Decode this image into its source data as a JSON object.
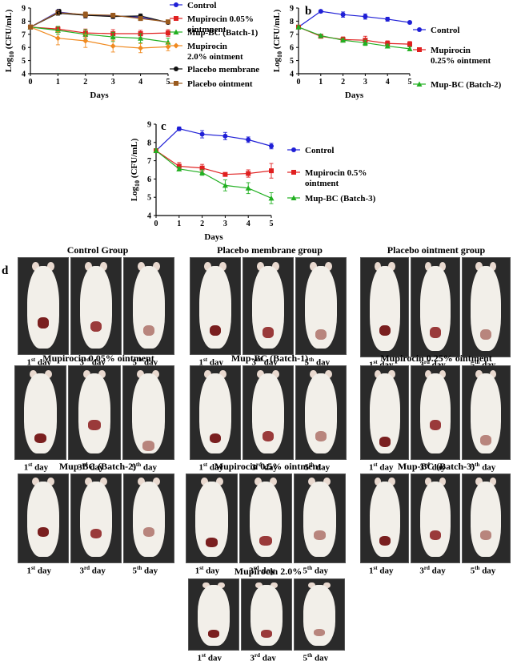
{
  "chart_data": [
    {
      "id": "a",
      "type": "line",
      "title": "",
      "xlabel": "Days",
      "ylabel": "Log10 (CFU/mL)",
      "ylabel_main": "Log",
      "ylabel_sub": "10",
      "ylabel_rest": " (CFU/mL)",
      "xlim": [
        0,
        5
      ],
      "ylim": [
        4,
        9
      ],
      "xticks": [
        "0",
        "1",
        "2",
        "3",
        "4",
        "5"
      ],
      "yticks": [
        "4",
        "5",
        "6",
        "7",
        "8",
        "9"
      ],
      "series": [
        {
          "name": "Control",
          "color": "#1f1fd6",
          "marker": "circle",
          "x": [
            0,
            1,
            2,
            3,
            4,
            5
          ],
          "y": [
            7.55,
            8.7,
            8.45,
            8.4,
            8.3,
            7.9
          ],
          "err": [
            0.1,
            0.15,
            0.2,
            0.2,
            0.15,
            0.1
          ]
        },
        {
          "name": "Mupirocin 0.05% ointmnent",
          "color": "#e02020",
          "marker": "square",
          "x": [
            0,
            1,
            2,
            3,
            4,
            5
          ],
          "y": [
            7.55,
            7.4,
            7.1,
            7.05,
            7.05,
            7.1
          ],
          "err": [
            0.1,
            0.2,
            0.3,
            0.3,
            0.25,
            0.25
          ]
        },
        {
          "name": "Mup-BC (Batch-1)",
          "color": "#22b022",
          "marker": "triangle",
          "x": [
            0,
            1,
            2,
            3,
            4,
            5
          ],
          "y": [
            7.55,
            7.3,
            7.0,
            6.8,
            6.7,
            6.4
          ],
          "err": [
            0.1,
            0.3,
            0.35,
            0.35,
            0.35,
            0.3
          ]
        },
        {
          "name": "Mupirocin 2.0% ointment",
          "color": "#f08a20",
          "marker": "diamond",
          "x": [
            0,
            1,
            2,
            3,
            4,
            5
          ],
          "y": [
            7.55,
            6.7,
            6.5,
            6.1,
            5.95,
            6.05
          ],
          "err": [
            0.1,
            0.5,
            0.5,
            0.45,
            0.35,
            0.3
          ]
        },
        {
          "name": "Placebo membrane",
          "color": "#111111",
          "marker": "circle",
          "x": [
            0,
            1,
            2,
            3,
            4,
            5
          ],
          "y": [
            7.55,
            8.6,
            8.45,
            8.35,
            8.4,
            7.9
          ],
          "err": [
            0.1,
            0.15,
            0.2,
            0.15,
            0.15,
            0.1
          ]
        },
        {
          "name": "Placebo ointment",
          "color": "#9a5a1e",
          "marker": "square",
          "x": [
            0,
            1,
            2,
            3,
            4,
            5
          ],
          "y": [
            7.55,
            8.65,
            8.5,
            8.45,
            8.2,
            7.95
          ],
          "err": [
            0.1,
            0.15,
            0.2,
            0.15,
            0.15,
            0.1
          ]
        }
      ],
      "legend_items": [
        "Control",
        "Mupirocin 0.05% ointmnent",
        "Mup-BC (Batch-1)",
        "Mupirocin 2.0% ointment",
        "Placebo membrane",
        "Placebo ointment"
      ]
    },
    {
      "id": "b",
      "type": "line",
      "title": "",
      "xlabel": "Days",
      "ylabel": "Log10 (CFU/mL)",
      "ylabel_main": "Log",
      "ylabel_sub": "10",
      "ylabel_rest": " (CFU/mL)",
      "xlim": [
        0,
        5
      ],
      "ylim": [
        4,
        9
      ],
      "xticks": [
        "0",
        "1",
        "2",
        "3",
        "4",
        "5"
      ],
      "yticks": [
        "4",
        "5",
        "6",
        "7",
        "8",
        "9"
      ],
      "series": [
        {
          "name": "Control",
          "color": "#1f1fd6",
          "marker": "circle",
          "x": [
            0,
            1,
            2,
            3,
            4,
            5
          ],
          "y": [
            7.55,
            8.75,
            8.5,
            8.35,
            8.15,
            7.9
          ],
          "err": [
            0.1,
            0.1,
            0.2,
            0.2,
            0.15,
            0.1
          ]
        },
        {
          "name": "Mupirocin 0.25% ointment",
          "color": "#e02020",
          "marker": "square",
          "x": [
            0,
            1,
            2,
            3,
            4,
            5
          ],
          "y": [
            7.55,
            6.85,
            6.6,
            6.55,
            6.3,
            6.25
          ],
          "err": [
            0.1,
            0.1,
            0.2,
            0.3,
            0.2,
            0.2
          ]
        },
        {
          "name": "Mup-BC (Batch-2)",
          "color": "#22b022",
          "marker": "triangle",
          "x": [
            0,
            1,
            2,
            3,
            4,
            5
          ],
          "y": [
            7.55,
            6.9,
            6.55,
            6.35,
            6.1,
            5.9
          ],
          "err": [
            0.1,
            0.1,
            0.15,
            0.2,
            0.15,
            0.15
          ]
        }
      ],
      "legend_items": [
        "Control",
        "Mupirocin 0.25% ointment",
        "Mup-BC (Batch-2)"
      ]
    },
    {
      "id": "c",
      "type": "line",
      "title": "",
      "xlabel": "Days",
      "ylabel": "Log10 (CFU/mL)",
      "ylabel_main": "Log",
      "ylabel_sub": "10",
      "ylabel_rest": " (CFU/mL)",
      "xlim": [
        0,
        5
      ],
      "ylim": [
        4,
        9
      ],
      "xticks": [
        "0",
        "1",
        "2",
        "3",
        "4",
        "5"
      ],
      "yticks": [
        "4",
        "5",
        "6",
        "7",
        "8",
        "9"
      ],
      "series": [
        {
          "name": "Control",
          "color": "#1f1fd6",
          "marker": "circle",
          "x": [
            0,
            1,
            2,
            3,
            4,
            5
          ],
          "y": [
            7.55,
            8.75,
            8.45,
            8.35,
            8.15,
            7.8
          ],
          "err": [
            0.1,
            0.1,
            0.2,
            0.2,
            0.15,
            0.15
          ]
        },
        {
          "name": "Mupirocin 0.5% ointment",
          "color": "#e02020",
          "marker": "square",
          "x": [
            0,
            1,
            2,
            3,
            4,
            5
          ],
          "y": [
            7.55,
            6.7,
            6.6,
            6.25,
            6.3,
            6.45
          ],
          "err": [
            0.1,
            0.2,
            0.2,
            0.1,
            0.2,
            0.4
          ]
        },
        {
          "name": "Mup-BC (Batch-3)",
          "color": "#22b022",
          "marker": "triangle",
          "x": [
            0,
            1,
            2,
            3,
            4,
            5
          ],
          "y": [
            7.55,
            6.55,
            6.35,
            5.65,
            5.5,
            4.95
          ],
          "err": [
            0.1,
            0.1,
            0.15,
            0.3,
            0.3,
            0.3
          ]
        }
      ],
      "legend_items": [
        "Control",
        "Mupirocin 0.5% ointment",
        "Mup-BC (Batch-3)"
      ]
    }
  ],
  "panel_labels": {
    "a": "a",
    "b": "b",
    "c": "c",
    "d": "d"
  },
  "photo_panel": {
    "groups": [
      {
        "title": "Control Group",
        "days": [
          "1",
          "3",
          "5"
        ]
      },
      {
        "title": "Placebo membrane group",
        "days": [
          "1",
          "3",
          "5"
        ]
      },
      {
        "title": "Placebo ointment group",
        "days": [
          "1",
          "3",
          "5"
        ]
      },
      {
        "title": "Mupirocin 0.05% ointment",
        "days": [
          "1",
          "3",
          "5"
        ]
      },
      {
        "title": "Mup-BC (Batch-1)",
        "days": [
          "1",
          "3",
          "5"
        ]
      },
      {
        "title": "Mupirocin 0.25%  ointment",
        "days": [
          "1",
          "3",
          "5"
        ]
      },
      {
        "title": "Mup-BC (Batch-2)",
        "days": [
          "1",
          "3",
          "5"
        ]
      },
      {
        "title": "Mupirocin 0.5% ointment",
        "days": [
          "1",
          "3",
          "5"
        ]
      },
      {
        "title": "Mup-BC (Batch-3)",
        "days": [
          "1",
          "3",
          "5"
        ]
      },
      {
        "title": "Mupirocin 2.0%",
        "days": [
          "1",
          "3",
          "5"
        ]
      }
    ],
    "day_suffixes": [
      "st",
      "rd",
      "th"
    ],
    "day_word": "day"
  }
}
